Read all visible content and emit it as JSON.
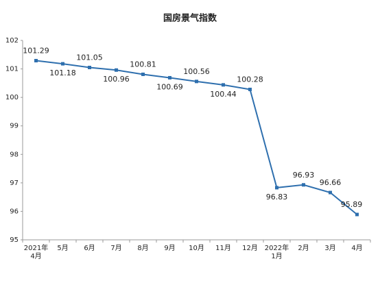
{
  "chart_data": {
    "type": "line",
    "title": "国房景气指数",
    "categories": [
      "2021年\n4月",
      "5月",
      "6月",
      "7月",
      "8月",
      "9月",
      "10月",
      "11月",
      "12月",
      "2022年\n1月",
      "2月",
      "3月",
      "4月"
    ],
    "values": [
      101.29,
      101.18,
      101.05,
      100.96,
      100.81,
      100.69,
      100.56,
      100.44,
      100.28,
      96.83,
      96.93,
      96.66,
      95.89
    ],
    "color": "#2e6fae",
    "ylim": [
      95,
      102
    ],
    "yticks": [
      95,
      96,
      97,
      98,
      99,
      100,
      101,
      102
    ],
    "grid": false
  }
}
